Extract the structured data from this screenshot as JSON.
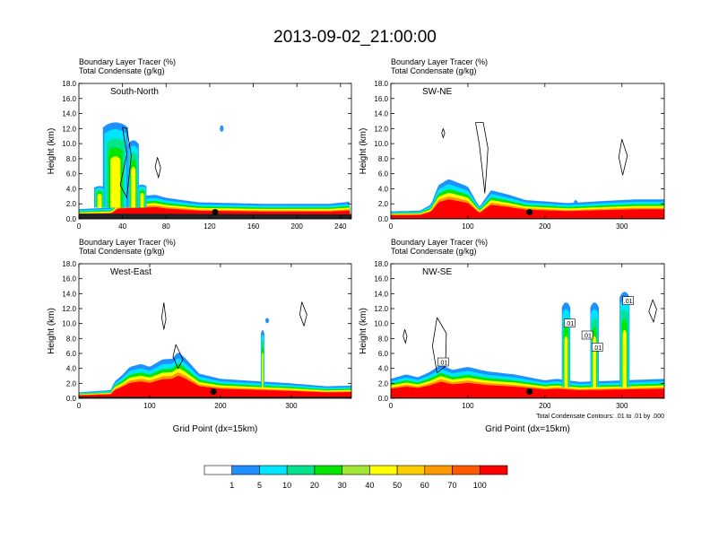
{
  "page_title": "2013-09-02_21:00:00",
  "chart_data": [
    {
      "type": "heatmap",
      "panel_label": "South-North",
      "header_line1": "Boundary Layer Tracer   (%)",
      "header_line2": "Total Condensate   (g/kg)",
      "ylabel": "Height (km)",
      "xlabel": "",
      "ylim": [
        0,
        18
      ],
      "xlim": [
        0,
        250
      ],
      "yticks": [
        "0.0",
        "2.0",
        "4.0",
        "6.0",
        "8.0",
        "10.0",
        "12.0",
        "14.0",
        "16.0",
        "18.0"
      ],
      "xticks": [
        {
          "v": 0,
          "label": "0"
        },
        {
          "v": 40,
          "label": "40"
        },
        {
          "v": 80,
          "label": "80"
        },
        {
          "v": 120,
          "label": "120"
        },
        {
          "v": 160,
          "label": "160"
        },
        {
          "v": 200,
          "label": "200"
        },
        {
          "v": 240,
          "label": "240"
        }
      ],
      "marker_x": 125
    },
    {
      "type": "heatmap",
      "panel_label": "SW-NE",
      "header_line1": "Boundary Layer Tracer   (%)",
      "header_line2": "Total Condensate   (g/kg)",
      "ylabel": "Height (km)",
      "xlabel": "",
      "ylim": [
        0,
        18
      ],
      "xlim": [
        0,
        355
      ],
      "yticks": [
        "0.0",
        "2.0",
        "4.0",
        "6.0",
        "8.0",
        "10.0",
        "12.0",
        "14.0",
        "16.0",
        "18.0"
      ],
      "xticks": [
        {
          "v": 0,
          "label": "0"
        },
        {
          "v": 100,
          "label": "100"
        },
        {
          "v": 200,
          "label": "200"
        },
        {
          "v": 300,
          "label": "300"
        }
      ],
      "marker_x": 180
    },
    {
      "type": "heatmap",
      "panel_label": "West-East",
      "header_line1": "Boundary Layer Tracer   (%)",
      "header_line2": "Total Condensate   (g/kg)",
      "ylabel": "Height (km)",
      "xlabel": "Grid Point (dx=15km)",
      "ylim": [
        0,
        18
      ],
      "xlim": [
        0,
        385
      ],
      "yticks": [
        "0.0",
        "2.0",
        "4.0",
        "6.0",
        "8.0",
        "10.0",
        "12.0",
        "14.0",
        "16.0",
        "18.0"
      ],
      "xticks": [
        {
          "v": 0,
          "label": "0"
        },
        {
          "v": 100,
          "label": "100"
        },
        {
          "v": 200,
          "label": "200"
        },
        {
          "v": 300,
          "label": "300"
        }
      ],
      "marker_x": 190
    },
    {
      "type": "heatmap",
      "panel_label": "NW-SE",
      "header_line1": "Boundary Layer Tracer   (%)",
      "header_line2": "Total Condensate   (g/kg)",
      "ylabel": "Height (km)",
      "xlabel": "Grid Point (dx=15km)",
      "ylim": [
        0,
        18
      ],
      "xlim": [
        0,
        355
      ],
      "yticks": [
        "0.0",
        "2.0",
        "4.0",
        "6.0",
        "8.0",
        "10.0",
        "12.0",
        "14.0",
        "16.0",
        "18.0"
      ],
      "xticks": [
        {
          "v": 0,
          "label": "0"
        },
        {
          "v": 100,
          "label": "100"
        },
        {
          "v": 200,
          "label": "200"
        },
        {
          "v": 300,
          "label": "300"
        }
      ],
      "marker_x": 180,
      "contour_note": "Total Condensate Contours: .01 to .01 by .000",
      "contour_labels": [
        {
          "label": ".01",
          "x": 68,
          "y": 4.8
        },
        {
          "label": ".01",
          "x": 232,
          "y": 10.0
        },
        {
          "label": ".01",
          "x": 255,
          "y": 8.4
        },
        {
          "label": ".01",
          "x": 268,
          "y": 6.8
        },
        {
          "label": ".01",
          "x": 308,
          "y": 13.0
        }
      ]
    }
  ],
  "colorbar": {
    "labels": [
      "1",
      "5",
      "10",
      "20",
      "30",
      "40",
      "50",
      "60",
      "70",
      "100"
    ],
    "colors": [
      "#ffffff",
      "#1e90ff",
      "#00e5ff",
      "#00e58c",
      "#00e600",
      "#a0e632",
      "#ffff00",
      "#ffcc00",
      "#ff9900",
      "#ff5a00",
      "#ff0000"
    ]
  }
}
